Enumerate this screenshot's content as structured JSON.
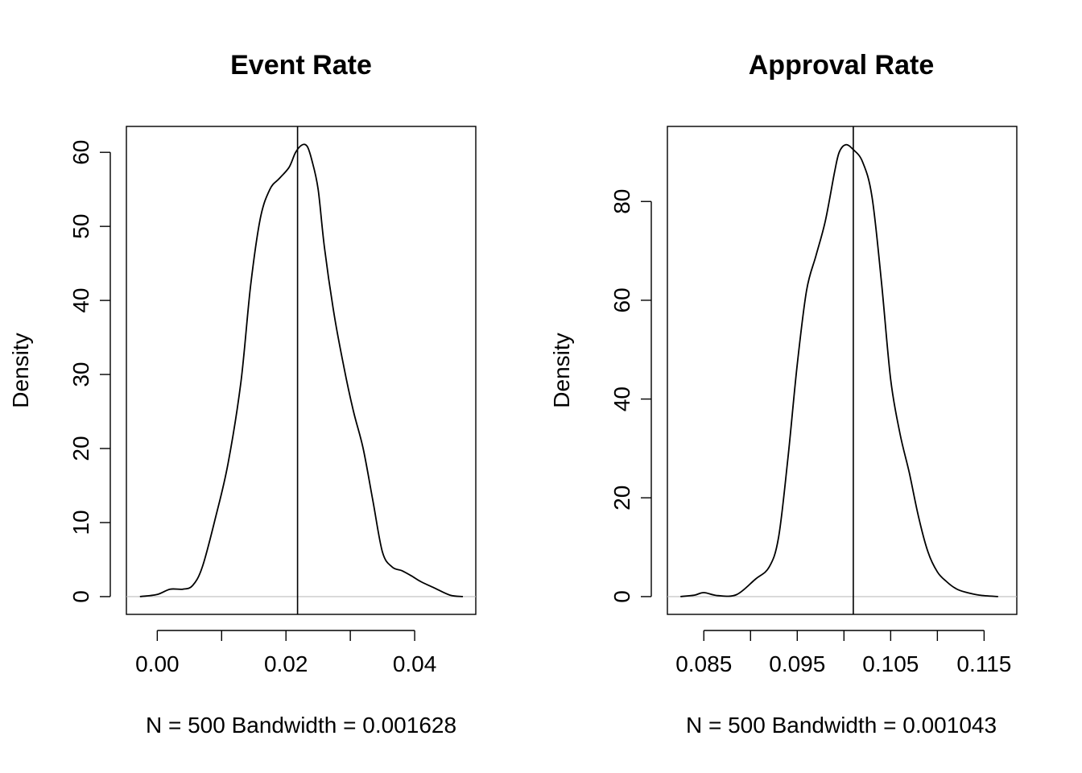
{
  "chart_data": [
    {
      "type": "line",
      "title": "Event Rate",
      "xlabel": "N = 500   Bandwidth = 0.001628",
      "ylabel": "Density",
      "xlim": [
        -0.0048,
        0.0495
      ],
      "ylim": [
        -2.4,
        63.5
      ],
      "x_ticks": [
        0.0,
        0.02,
        0.04
      ],
      "x_tick_labels": [
        "0.00",
        "0.02",
        "0.04"
      ],
      "x_minor_ticks": [
        0.01,
        0.03
      ],
      "y_ticks": [
        0,
        10,
        20,
        30,
        40,
        50,
        60
      ],
      "y_tick_labels": [
        "0",
        "10",
        "20",
        "30",
        "40",
        "50",
        "60"
      ],
      "vline": 0.0218,
      "baseline": 0,
      "colors": {
        "curve": "#000000",
        "baseline": "#bebebe",
        "vline": "#000000"
      },
      "series": [
        {
          "x": [
            -0.0027,
            0.0,
            0.002,
            0.004,
            0.0055,
            0.007,
            0.009,
            0.011,
            0.013,
            0.0145,
            0.016,
            0.0175,
            0.019,
            0.0205,
            0.0215,
            0.0225,
            0.0233,
            0.024,
            0.025,
            0.026,
            0.0275,
            0.029,
            0.0305,
            0.032,
            0.0335,
            0.035,
            0.0365,
            0.038,
            0.0395,
            0.041,
            0.043,
            0.0455,
            0.0475
          ],
          "y": [
            0.0,
            0.3,
            1.0,
            1.0,
            1.5,
            4.0,
            10.5,
            18.0,
            29.0,
            42.0,
            51.0,
            55.0,
            56.5,
            58.0,
            60.0,
            61.0,
            60.8,
            59.0,
            55.0,
            47.0,
            38.0,
            31.0,
            25.0,
            20.0,
            13.0,
            6.0,
            4.0,
            3.5,
            2.8,
            2.0,
            1.2,
            0.2,
            0.0
          ]
        }
      ]
    },
    {
      "type": "line",
      "title": "Approval Rate",
      "xlabel": "N = 500   Bandwidth = 0.001043",
      "ylabel": "Density",
      "xlim": [
        0.0811,
        0.1185
      ],
      "ylim": [
        -3.6,
        95.2
      ],
      "x_ticks": [
        0.085,
        0.095,
        0.105,
        0.115
      ],
      "x_tick_labels": [
        "0.085",
        "0.095",
        "0.105",
        "0.115"
      ],
      "x_minor_ticks": [
        0.09,
        0.1,
        0.11
      ],
      "y_ticks": [
        0,
        20,
        40,
        60,
        80
      ],
      "y_tick_labels": [
        "0",
        "20",
        "40",
        "60",
        "80"
      ],
      "vline": 0.101,
      "baseline": 0,
      "colors": {
        "curve": "#000000",
        "baseline": "#bebebe",
        "vline": "#000000"
      },
      "series": [
        {
          "x": [
            0.0825,
            0.084,
            0.085,
            0.0865,
            0.0885,
            0.0905,
            0.092,
            0.093,
            0.094,
            0.095,
            0.096,
            0.097,
            0.098,
            0.099,
            0.0995,
            0.1002,
            0.101,
            0.102,
            0.103,
            0.104,
            0.105,
            0.106,
            0.107,
            0.108,
            0.109,
            0.11,
            0.111,
            0.112,
            0.113,
            0.1145,
            0.1165
          ],
          "y": [
            0.0,
            0.3,
            0.8,
            0.2,
            0.4,
            3.5,
            6.0,
            12.0,
            28.0,
            47.0,
            62.0,
            69.0,
            76.0,
            86.0,
            90.0,
            91.5,
            90.5,
            88.0,
            81.0,
            64.0,
            44.0,
            33.0,
            25.0,
            16.0,
            9.0,
            5.0,
            3.0,
            1.6,
            0.9,
            0.3,
            0.0
          ]
        }
      ]
    }
  ]
}
